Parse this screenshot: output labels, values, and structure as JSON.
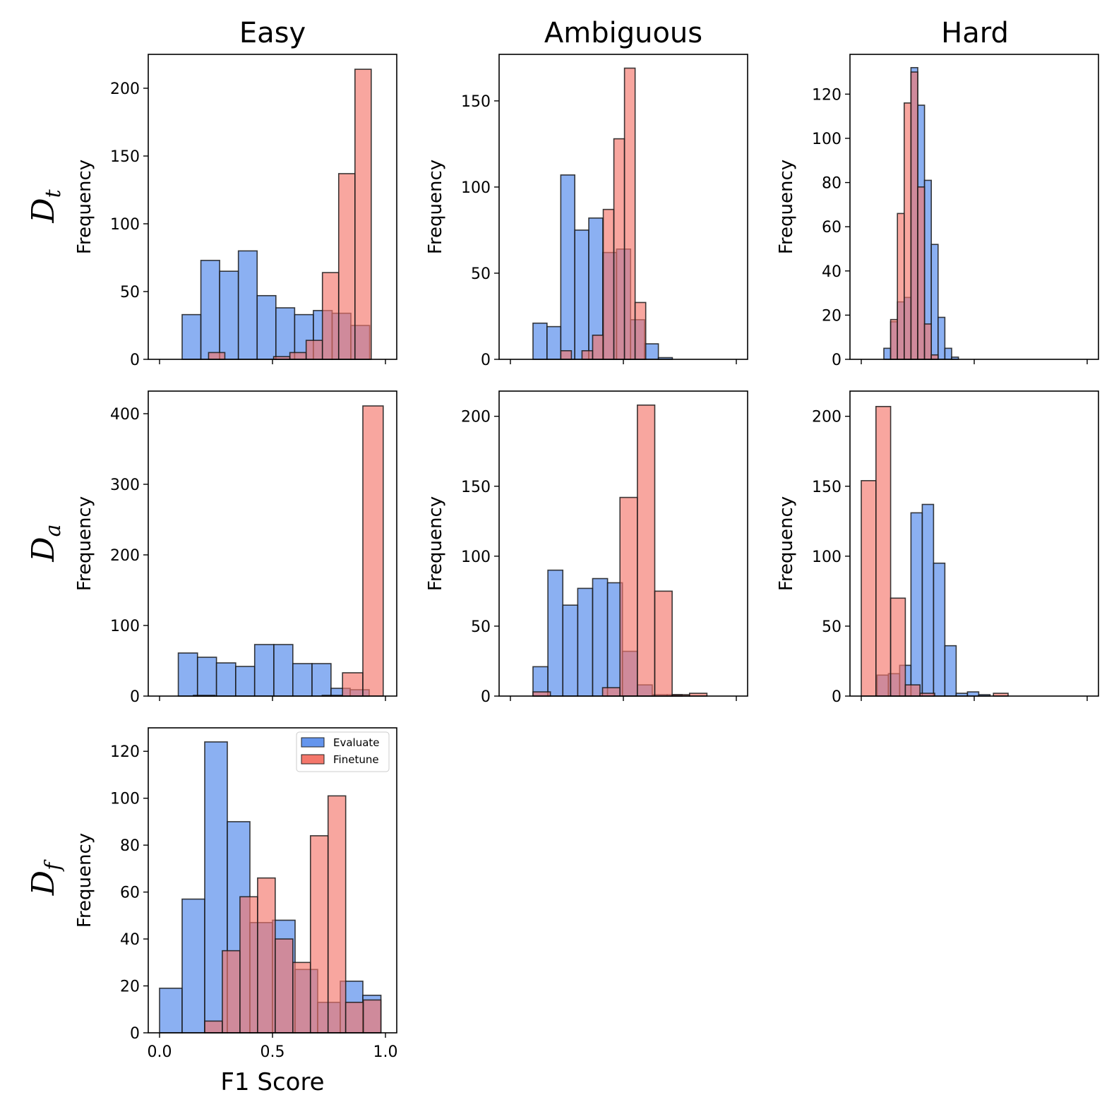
{
  "colors": {
    "evaluate": "#6495ED",
    "finetune": "#F4776B"
  },
  "columns": [
    "Easy",
    "Ambiguous",
    "Hard"
  ],
  "rows": [
    {
      "script": "D",
      "sub": "t"
    },
    {
      "script": "D",
      "sub": "a"
    },
    {
      "script": "D",
      "sub": "f"
    }
  ],
  "xlabel": "F1 Score",
  "ylabel": "Frequency",
  "xticks": [
    0.0,
    0.5,
    1.0
  ],
  "xtick_labels": [
    "0.0",
    "0.5",
    "1.0"
  ],
  "legend": {
    "placement": "top-right",
    "entries": [
      "Evaluate",
      "Finetune"
    ]
  },
  "chart_data": [
    {
      "type": "bar",
      "title": "Easy",
      "row": "Dt",
      "ylabel": "Frequency",
      "xlim": [
        -0.05,
        1.05
      ],
      "ylim": [
        0,
        225
      ],
      "yticks": [
        0,
        50,
        100,
        150,
        200
      ],
      "series": [
        {
          "name": "Evaluate",
          "bin_edges": [
            0.1,
            0.183,
            0.266,
            0.349,
            0.432,
            0.515,
            0.598,
            0.681,
            0.764,
            0.847,
            0.93
          ],
          "values": [
            33,
            73,
            65,
            80,
            47,
            38,
            33,
            36,
            34,
            25
          ]
        },
        {
          "name": "Finetune",
          "bin_edges": [
            0.217,
            0.289,
            0.361,
            0.433,
            0.505,
            0.577,
            0.649,
            0.721,
            0.793,
            0.865,
            0.937
          ],
          "values": [
            5,
            0,
            0,
            0,
            2,
            5,
            14,
            64,
            137,
            214
          ]
        }
      ]
    },
    {
      "type": "bar",
      "title": "Ambiguous",
      "row": "Dt",
      "ylabel": "Frequency",
      "xlim": [
        -0.05,
        1.05
      ],
      "ylim": [
        0,
        177
      ],
      "yticks": [
        0,
        50,
        100,
        150
      ],
      "series": [
        {
          "name": "Evaluate",
          "bin_edges": [
            0.1,
            0.162,
            0.223,
            0.285,
            0.347,
            0.409,
            0.47,
            0.532,
            0.594,
            0.655,
            0.717
          ],
          "values": [
            21,
            19,
            107,
            75,
            82,
            62,
            64,
            23,
            9,
            1
          ]
        },
        {
          "name": "Finetune",
          "bin_edges": [
            0.223,
            0.27,
            0.317,
            0.364,
            0.411,
            0.458,
            0.505,
            0.552,
            0.599,
            0.646
          ],
          "values": [
            5,
            0,
            5,
            14,
            87,
            128,
            169,
            33,
            0
          ]
        }
      ]
    },
    {
      "type": "bar",
      "title": "Hard",
      "row": "Dt",
      "ylabel": "Frequency",
      "xlim": [
        -0.05,
        1.05
      ],
      "ylim": [
        0,
        138
      ],
      "yticks": [
        0,
        20,
        40,
        60,
        80,
        100,
        120
      ],
      "series": [
        {
          "name": "Evaluate",
          "bin_edges": [
            0.1,
            0.13,
            0.16,
            0.19,
            0.22,
            0.25,
            0.28,
            0.31,
            0.34,
            0.37,
            0.4,
            0.43,
            0.46
          ],
          "values": [
            5,
            17,
            26,
            28,
            132,
            115,
            81,
            52,
            19,
            5,
            1,
            0
          ]
        },
        {
          "name": "Finetune",
          "bin_edges": [
            0.13,
            0.16,
            0.19,
            0.22,
            0.25,
            0.28,
            0.31,
            0.34,
            0.37
          ],
          "values": [
            18,
            66,
            116,
            130,
            78,
            16,
            2,
            0
          ]
        }
      ]
    },
    {
      "type": "bar",
      "title": "Easy",
      "row": "Da",
      "ylabel": "Frequency",
      "xlim": [
        -0.05,
        1.05
      ],
      "ylim": [
        0,
        432
      ],
      "yticks": [
        0,
        100,
        200,
        300,
        400
      ],
      "series": [
        {
          "name": "Evaluate",
          "bin_edges": [
            0.083,
            0.168,
            0.252,
            0.337,
            0.421,
            0.506,
            0.59,
            0.675,
            0.759,
            0.844,
            0.928
          ],
          "values": [
            61,
            55,
            47,
            42,
            73,
            73,
            46,
            46,
            11,
            9
          ]
        },
        {
          "name": "Finetune",
          "bin_edges": [
            0.15,
            0.245,
            0.34,
            0.435,
            0.53,
            0.625,
            0.72,
            0.81,
            0.9,
            0.99
          ],
          "values": [
            1,
            0,
            0,
            0,
            0,
            0,
            1,
            33,
            411
          ]
        }
      ]
    },
    {
      "type": "bar",
      "title": "Ambiguous",
      "row": "Da",
      "ylabel": "Frequency",
      "xlim": [
        -0.05,
        1.05
      ],
      "ylim": [
        0,
        218
      ],
      "yticks": [
        0,
        50,
        100,
        150,
        200
      ],
      "series": [
        {
          "name": "Evaluate",
          "bin_edges": [
            0.1,
            0.166,
            0.232,
            0.298,
            0.364,
            0.43,
            0.496,
            0.562,
            0.628,
            0.694,
            0.76
          ],
          "values": [
            21,
            90,
            65,
            77,
            84,
            81,
            32,
            8,
            1,
            1
          ]
        },
        {
          "name": "Finetune",
          "bin_edges": [
            0.1,
            0.177,
            0.254,
            0.331,
            0.408,
            0.485,
            0.562,
            0.639,
            0.716,
            0.793,
            0.87
          ],
          "values": [
            3,
            0,
            0,
            0,
            6,
            142,
            208,
            75,
            1,
            2
          ]
        }
      ]
    },
    {
      "type": "bar",
      "title": "Hard",
      "row": "Da",
      "ylabel": "Frequency",
      "xlim": [
        -0.05,
        1.05
      ],
      "ylim": [
        0,
        218
      ],
      "yticks": [
        0,
        50,
        100,
        150,
        200
      ],
      "series": [
        {
          "name": "Evaluate",
          "bin_edges": [
            0.07,
            0.12,
            0.17,
            0.22,
            0.27,
            0.32,
            0.37,
            0.42,
            0.47,
            0.52,
            0.57
          ],
          "values": [
            15,
            16,
            22,
            131,
            137,
            95,
            36,
            2,
            3,
            1
          ]
        },
        {
          "name": "Finetune",
          "bin_edges": [
            0.0,
            0.065,
            0.13,
            0.195,
            0.26,
            0.325,
            0.39,
            0.455,
            0.52,
            0.585,
            0.65
          ],
          "values": [
            154,
            207,
            70,
            8,
            2,
            0,
            0,
            0,
            0,
            2
          ]
        }
      ]
    },
    {
      "type": "bar",
      "title": "Easy",
      "row": "Df",
      "ylabel": "Frequency",
      "xlabel": "F1 Score",
      "xlim": [
        -0.05,
        1.05
      ],
      "ylim": [
        0,
        130
      ],
      "yticks": [
        0,
        20,
        40,
        60,
        80,
        100,
        120
      ],
      "series": [
        {
          "name": "Evaluate",
          "bin_edges": [
            0.0,
            0.1,
            0.2,
            0.3,
            0.4,
            0.5,
            0.6,
            0.7,
            0.8,
            0.9,
            0.98
          ],
          "values": [
            19,
            57,
            124,
            90,
            47,
            48,
            27,
            13,
            22,
            16
          ]
        },
        {
          "name": "Finetune",
          "bin_edges": [
            0.2,
            0.278,
            0.356,
            0.434,
            0.512,
            0.59,
            0.668,
            0.746,
            0.824,
            0.902,
            0.98
          ],
          "values": [
            5,
            35,
            58,
            66,
            40,
            30,
            84,
            101,
            13,
            14
          ]
        }
      ]
    }
  ]
}
